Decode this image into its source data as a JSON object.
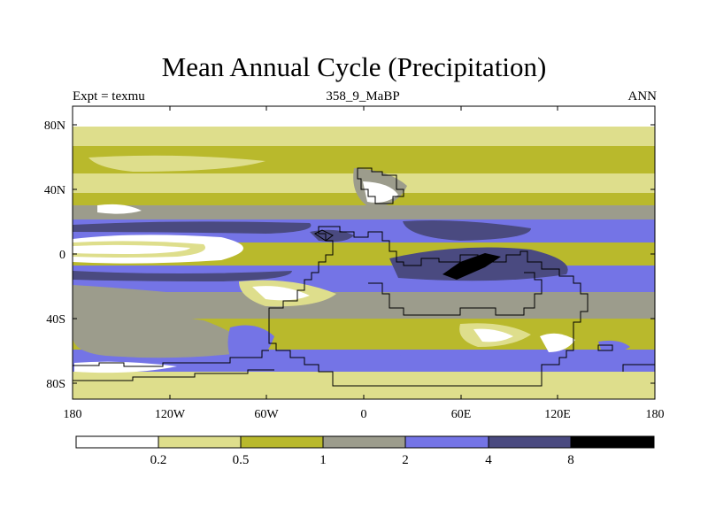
{
  "figure": {
    "title": "Mean Annual Cycle (Precipitation)",
    "left_subtitle": "Expt = texmu",
    "center_subtitle": "358_9_MaBP",
    "right_subtitle": "ANN"
  },
  "axes": {
    "y_ticks": [
      "80N",
      "40N",
      "0",
      "40S",
      "80S"
    ],
    "x_ticks": [
      "180",
      "120W",
      "60W",
      "0",
      "60E",
      "120E",
      "180"
    ]
  },
  "colorbar": {
    "labels": [
      "0.2",
      "0.5",
      "1",
      "2",
      "4",
      "8"
    ],
    "colors": [
      "#ffffff",
      "#dede8c",
      "#b9b92c",
      "#9c9c8c",
      "#7474e6",
      "#4a4a80",
      "#000000"
    ]
  }
}
